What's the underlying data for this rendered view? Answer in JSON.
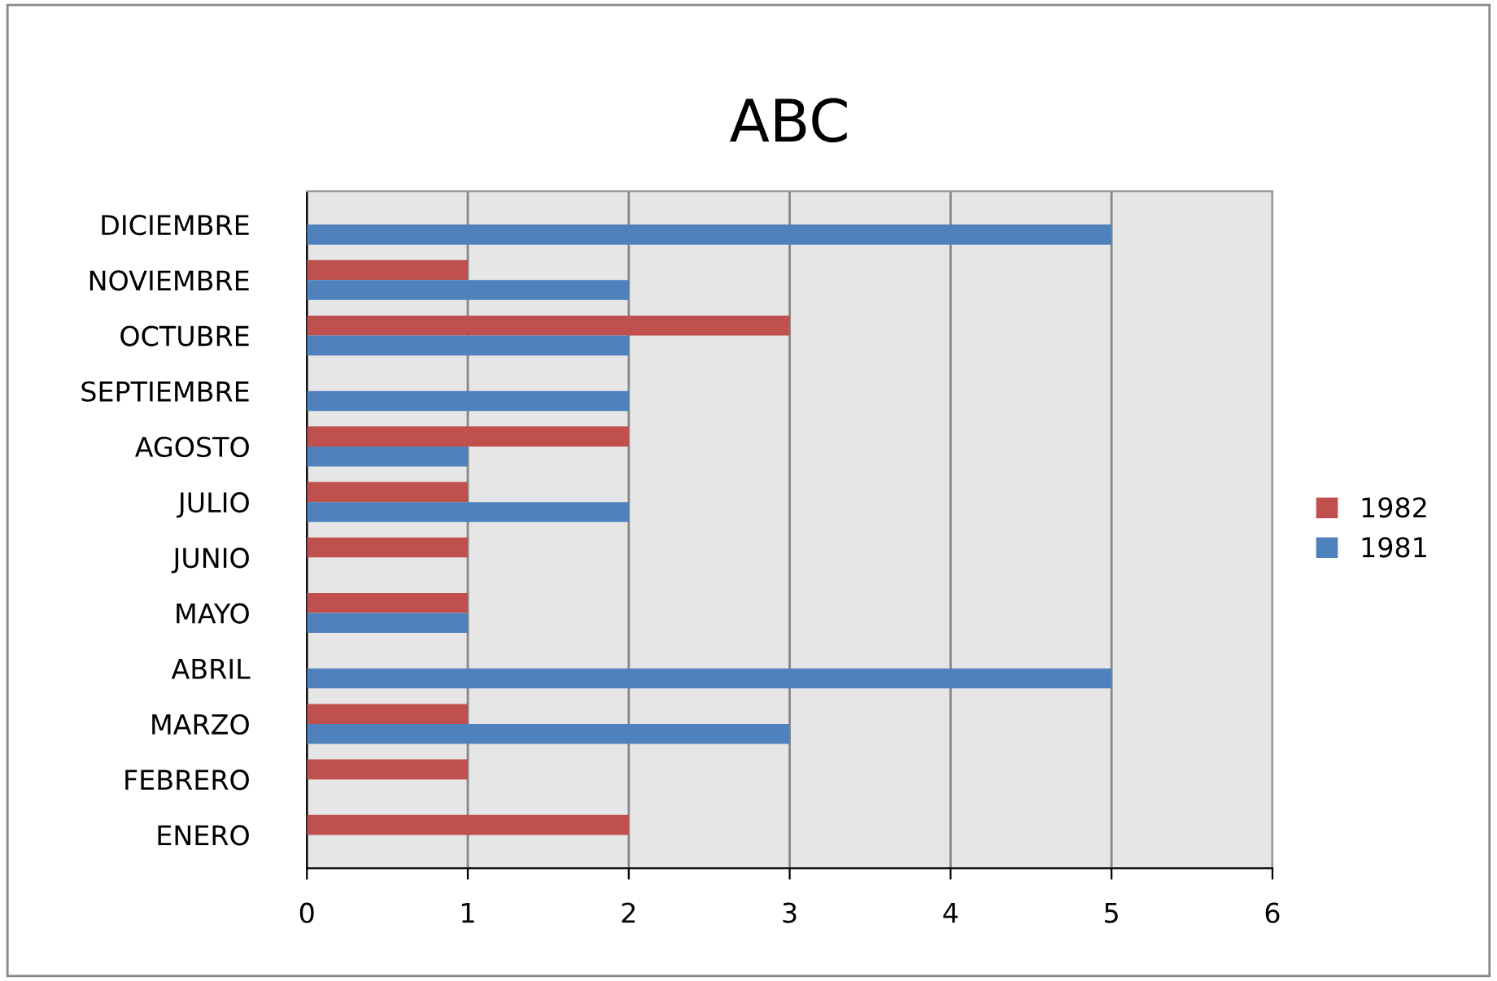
{
  "chart_data": {
    "type": "bar",
    "orientation": "horizontal",
    "title": "ABC",
    "categories": [
      "DICIEMBRE",
      "NOVIEMBRE",
      "OCTUBRE",
      "SEPTIEMBRE",
      "AGOSTO",
      "JULIO",
      "JUNIO",
      "MAYO",
      "ABRIL",
      "MARZO",
      "FEBRERO",
      "ENERO"
    ],
    "series": [
      {
        "name": "1982",
        "color": "#c0504d",
        "values": [
          null,
          1,
          3,
          null,
          2,
          1,
          1,
          1,
          null,
          1,
          1,
          2
        ]
      },
      {
        "name": "1981",
        "color": "#4f81bd",
        "values": [
          5,
          2,
          2,
          2,
          1,
          2,
          null,
          1,
          5,
          3,
          null,
          null
        ]
      }
    ],
    "xlim": [
      0,
      6
    ],
    "xticks": [
      0,
      1,
      2,
      3,
      4,
      5,
      6
    ],
    "grid": "x",
    "legend": "right"
  }
}
